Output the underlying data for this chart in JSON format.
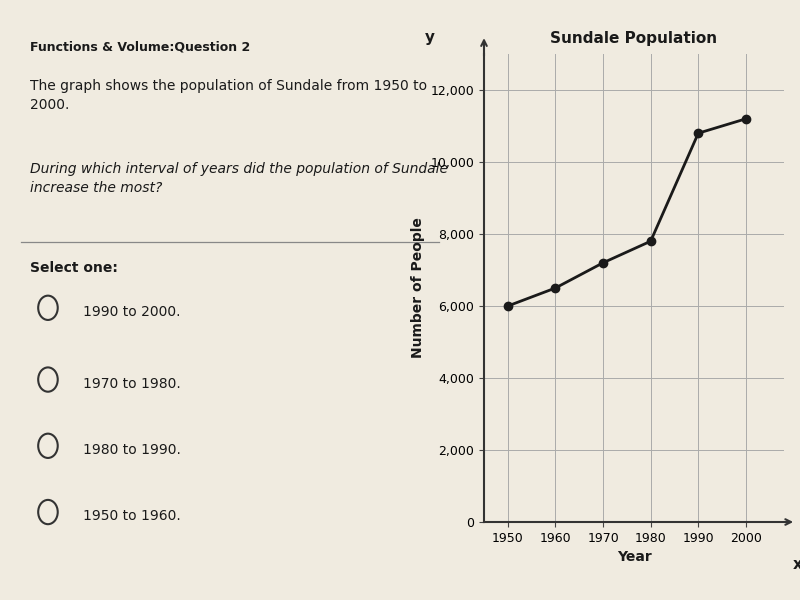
{
  "title": "Sundale Population",
  "xlabel": "Year",
  "ylabel": "Number of People",
  "years": [
    1950,
    1960,
    1970,
    1980,
    1990,
    2000
  ],
  "population": [
    6000,
    6500,
    7200,
    7800,
    10800,
    11200
  ],
  "ylim": [
    0,
    13000
  ],
  "xlim": [
    1945,
    2008
  ],
  "yticks": [
    0,
    2000,
    4000,
    6000,
    8000,
    10000,
    12000
  ],
  "xticks": [
    1950,
    1960,
    1970,
    1980,
    1990,
    2000
  ],
  "line_color": "#1a1a1a",
  "marker_color": "#1a1a1a",
  "grid_color": "#aaaaaa",
  "bg_color": "#f0ebe0",
  "title_fontsize": 11,
  "axis_label_fontsize": 10,
  "tick_fontsize": 9,
  "left_text_bold": "Functions & Volume:Question 2",
  "left_text_body": "The graph shows the population of Sundale from 1950 to\n2000.",
  "left_text_question": "During which interval of years did the population of Sundale\nincrease the most?",
  "select_label": "Select one:",
  "options": [
    "1990 to 2000.",
    "1970 to 1980.",
    "1980 to 1990.",
    "1950 to 1960."
  ]
}
